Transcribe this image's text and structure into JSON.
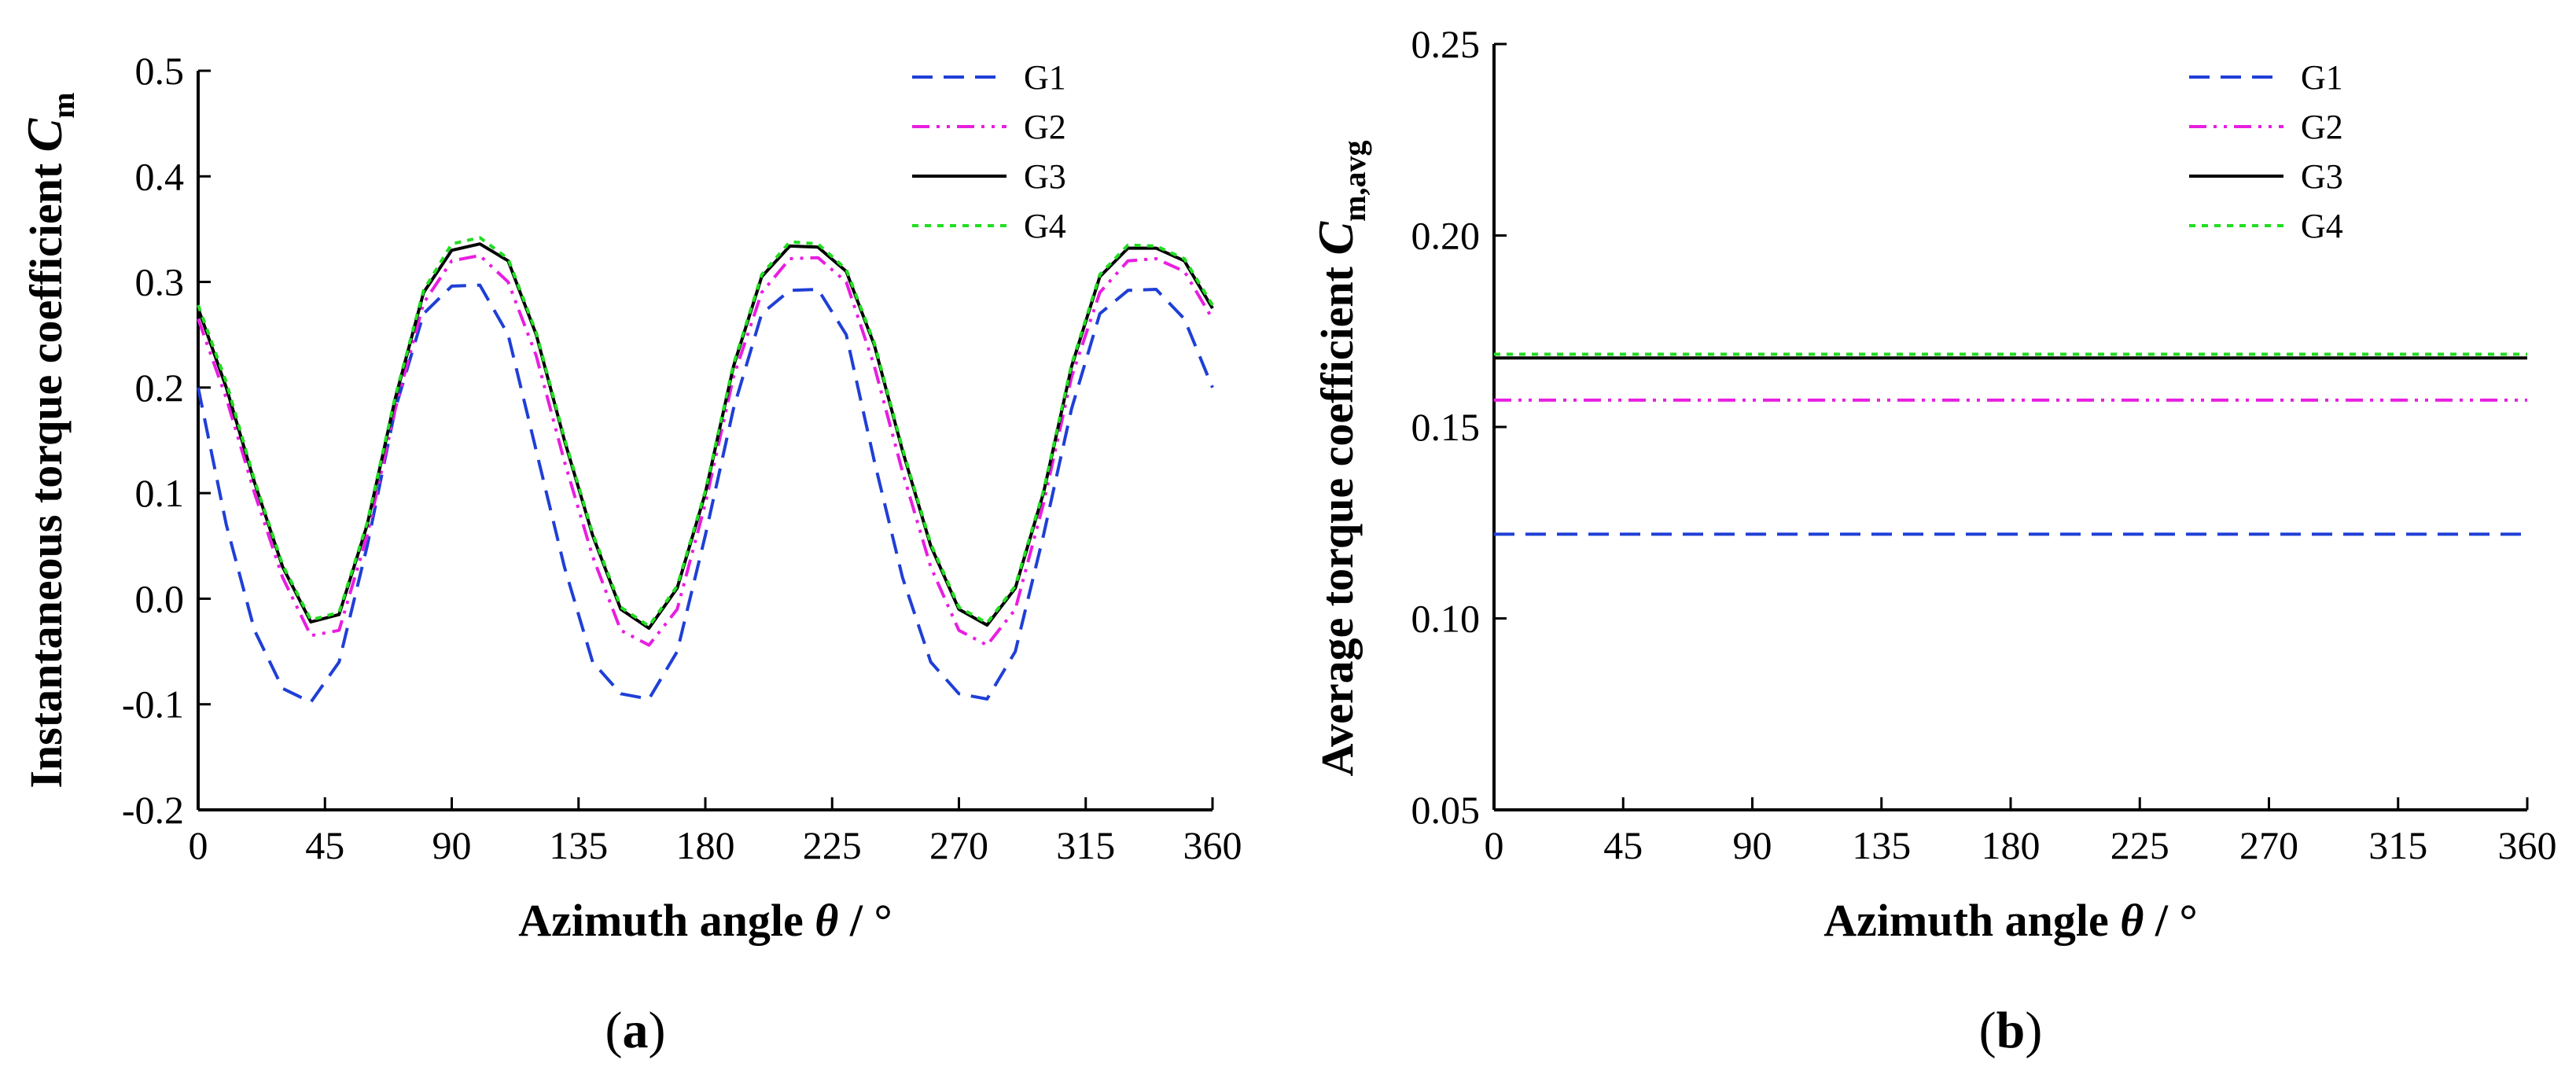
{
  "chart_data": [
    {
      "panel_label": "(a)",
      "type": "line",
      "xlabel": "Azimuth angle θ / °",
      "ylabel": "Instantaneous torque coefficient C",
      "ylabel_sub": "m",
      "xlim": [
        0,
        360
      ],
      "ylim": [
        -0.2,
        0.5
      ],
      "xticks": [
        "0",
        "45",
        "90",
        "135",
        "180",
        "225",
        "270",
        "315",
        "360"
      ],
      "yticks": [
        "-0.2",
        "-0.1",
        "0.0",
        "0.1",
        "0.2",
        "0.3",
        "0.4",
        "0.5"
      ],
      "legend_position": "top-right",
      "x": [
        0,
        10,
        20,
        30,
        40,
        50,
        60,
        70,
        80,
        90,
        100,
        110,
        120,
        130,
        140,
        150,
        160,
        170,
        180,
        190,
        200,
        210,
        220,
        230,
        240,
        250,
        260,
        270,
        280,
        290,
        300,
        310,
        320,
        330,
        340,
        350,
        360
      ],
      "series": [
        {
          "name": "G1",
          "color": "#1f3fd6",
          "dash": "dash",
          "values": [
            0.2,
            0.07,
            -0.03,
            -0.085,
            -0.098,
            -0.06,
            0.05,
            0.18,
            0.27,
            0.296,
            0.297,
            0.25,
            0.14,
            0.03,
            -0.06,
            -0.09,
            -0.095,
            -0.05,
            0.06,
            0.18,
            0.27,
            0.292,
            0.293,
            0.25,
            0.13,
            0.02,
            -0.06,
            -0.09,
            -0.095,
            -0.05,
            0.06,
            0.18,
            0.27,
            0.292,
            0.293,
            0.265,
            0.2
          ]
        },
        {
          "name": "G2",
          "color": "#e81ee0",
          "dash": "dashdotdot",
          "values": [
            0.265,
            0.19,
            0.1,
            0.02,
            -0.035,
            -0.03,
            0.06,
            0.18,
            0.28,
            0.32,
            0.325,
            0.3,
            0.23,
            0.13,
            0.04,
            -0.03,
            -0.044,
            -0.01,
            0.09,
            0.21,
            0.29,
            0.322,
            0.323,
            0.3,
            0.22,
            0.12,
            0.03,
            -0.03,
            -0.044,
            -0.01,
            0.09,
            0.21,
            0.29,
            0.32,
            0.322,
            0.31,
            0.265
          ]
        },
        {
          "name": "G3",
          "color": "#000000",
          "dash": "solid",
          "values": [
            0.275,
            0.2,
            0.11,
            0.03,
            -0.022,
            -0.015,
            0.07,
            0.19,
            0.29,
            0.33,
            0.336,
            0.32,
            0.25,
            0.15,
            0.06,
            -0.01,
            -0.028,
            0.01,
            0.1,
            0.22,
            0.305,
            0.334,
            0.333,
            0.31,
            0.24,
            0.14,
            0.05,
            -0.01,
            -0.025,
            0.01,
            0.1,
            0.22,
            0.305,
            0.332,
            0.332,
            0.32,
            0.275
          ]
        },
        {
          "name": "G4",
          "color": "#22dd22",
          "dash": "dot",
          "values": [
            0.278,
            0.205,
            0.112,
            0.032,
            -0.02,
            -0.013,
            0.072,
            0.192,
            0.292,
            0.336,
            0.342,
            0.322,
            0.252,
            0.152,
            0.062,
            -0.008,
            -0.026,
            0.012,
            0.102,
            0.222,
            0.307,
            0.338,
            0.336,
            0.312,
            0.242,
            0.142,
            0.052,
            -0.008,
            -0.023,
            0.012,
            0.102,
            0.222,
            0.307,
            0.335,
            0.334,
            0.322,
            0.278
          ]
        }
      ]
    },
    {
      "panel_label": "(b)",
      "type": "line",
      "xlabel": "Azimuth angle θ / °",
      "ylabel": "Average torque coefficient C",
      "ylabel_sub": "m,avg",
      "xlim": [
        0,
        360
      ],
      "ylim": [
        0.05,
        0.25
      ],
      "xticks": [
        "0",
        "45",
        "90",
        "135",
        "180",
        "225",
        "270",
        "315",
        "360"
      ],
      "yticks": [
        "0.05",
        "0.10",
        "0.15",
        "0.20",
        "0.25"
      ],
      "legend_position": "top-right",
      "x": [
        0,
        360
      ],
      "series": [
        {
          "name": "G1",
          "color": "#1f3fd6",
          "dash": "dash",
          "values": [
            0.122,
            0.122
          ]
        },
        {
          "name": "G2",
          "color": "#e81ee0",
          "dash": "dashdotdot",
          "values": [
            0.157,
            0.157
          ]
        },
        {
          "name": "G3",
          "color": "#000000",
          "dash": "solid",
          "values": [
            0.168,
            0.168
          ]
        },
        {
          "name": "G4",
          "color": "#22dd22",
          "dash": "dot",
          "values": [
            0.169,
            0.169
          ]
        }
      ]
    }
  ]
}
